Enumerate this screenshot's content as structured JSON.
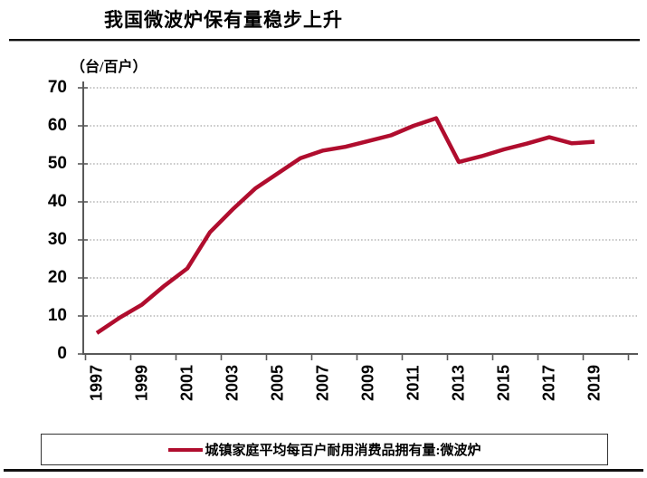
{
  "header": {
    "title": "我国微波炉保有量稳步上升"
  },
  "chart_data": {
    "type": "line",
    "title": "我国微波炉保有量稳步上升",
    "unit_label": "（台/百户）",
    "xlabel": "",
    "ylabel": "台/百户",
    "ylim": [
      0,
      70
    ],
    "y_ticks": [
      0,
      10,
      20,
      30,
      40,
      50,
      60,
      70
    ],
    "grid": "horizontal dotted gridlines on",
    "legend_position": "bottom",
    "x": [
      1997,
      1998,
      1999,
      2000,
      2001,
      2002,
      2003,
      2004,
      2005,
      2006,
      2007,
      2008,
      2009,
      2010,
      2011,
      2012,
      2013,
      2014,
      2015,
      2016,
      2017,
      2018,
      2019
    ],
    "x_tick_labels": [
      "1997",
      "1999",
      "2001",
      "2003",
      "2005",
      "2007",
      "2009",
      "2011",
      "2013",
      "2015",
      "2017",
      "2019"
    ],
    "series": [
      {
        "name": "城镇家庭平均每百户耐用消费品拥有量:微波炉",
        "color": "#B00D2E",
        "values": [
          5.5,
          9.5,
          13,
          18,
          22.5,
          32,
          38,
          43.5,
          47.5,
          51.5,
          53.5,
          54.5,
          56,
          57.5,
          60,
          62,
          50.5,
          52,
          53.8,
          55.3,
          57,
          55.4,
          55.8
        ]
      }
    ]
  },
  "legend": {
    "label": "城镇家庭平均每百户耐用消费品拥有量:微波炉",
    "marker_color": "#B00D2E"
  },
  "colors": {
    "line": "#B00D2E",
    "axis": "#595959",
    "gridline": "#8c8c8c",
    "rule": "#111111",
    "text": "#000000",
    "background": "#ffffff"
  }
}
